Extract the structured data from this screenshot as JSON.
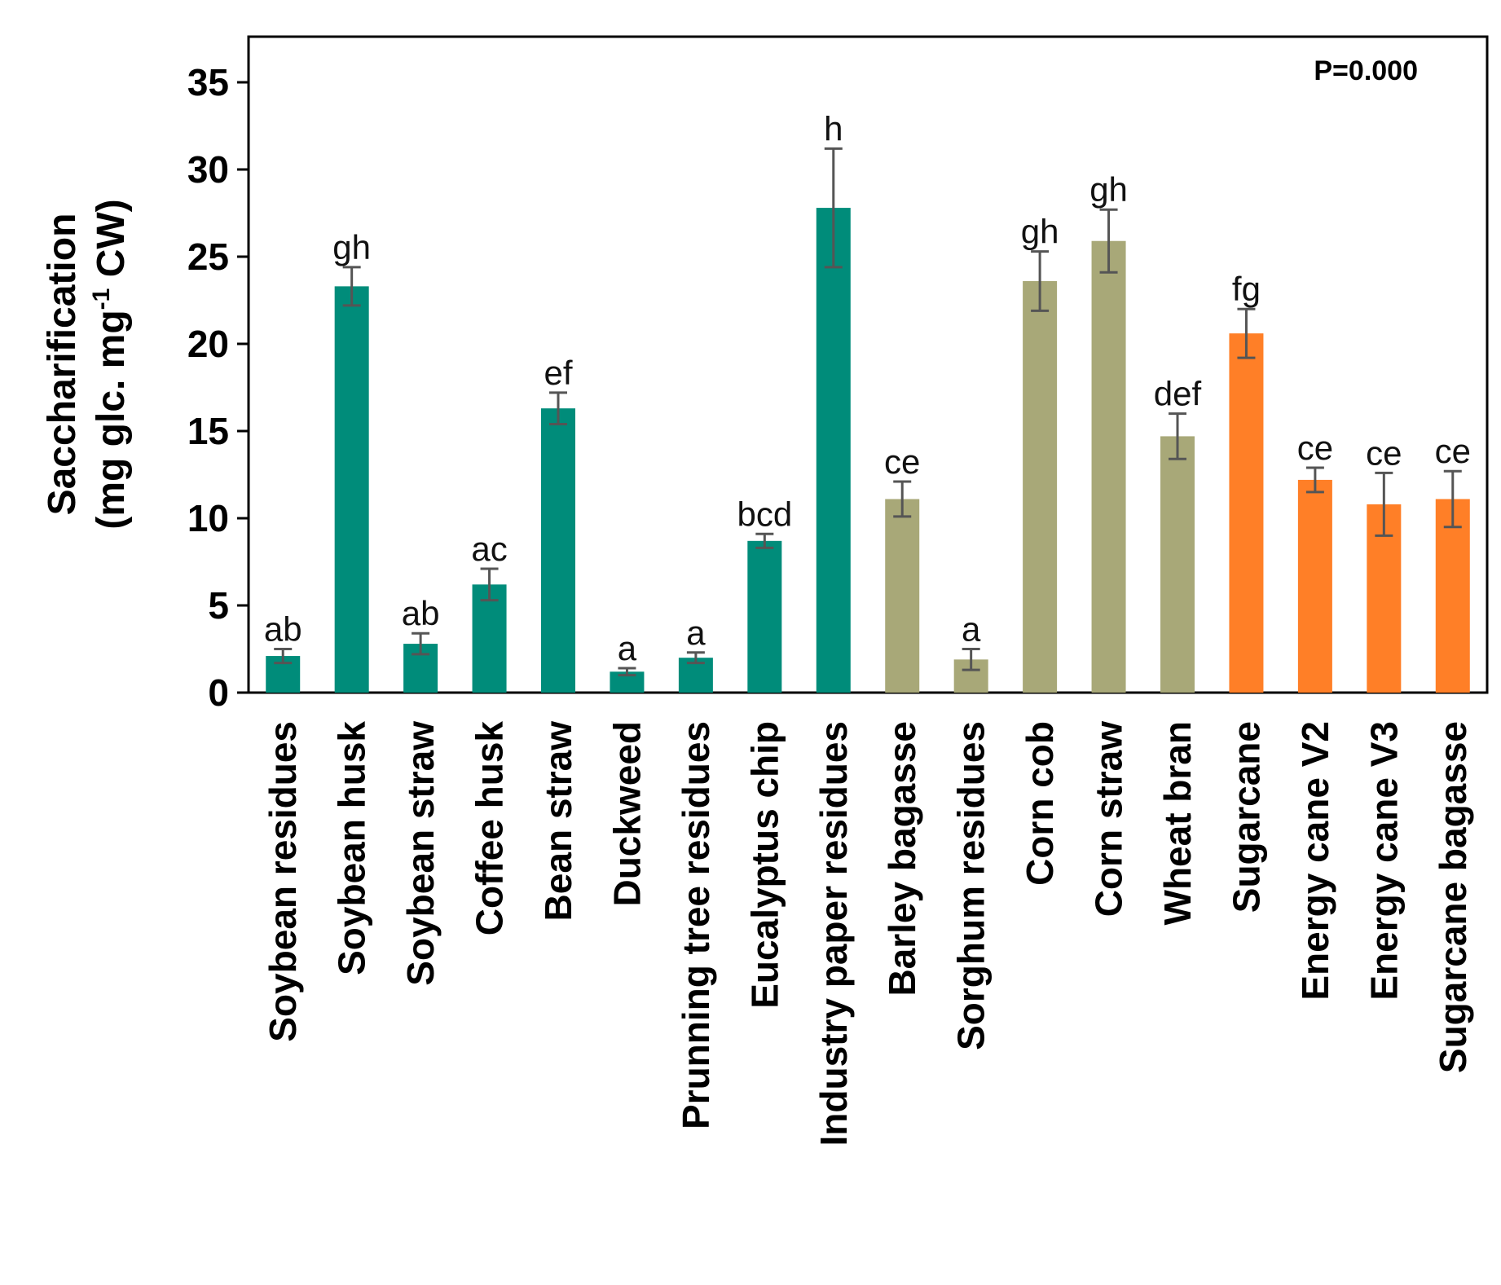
{
  "chart_data": {
    "type": "bar",
    "title": "",
    "xlabel": "",
    "ylabel_line1": "Saccharification",
    "ylabel_line2_pre": "(mg glc. mg",
    "ylabel_line2_sup": "-1",
    "ylabel_line2_post": " CW)",
    "ylim": [
      0,
      38
    ],
    "yticks": [
      0,
      5,
      10,
      15,
      20,
      25,
      30,
      35
    ],
    "annotation": "P=0.000",
    "colors": {
      "green": "#008C7A",
      "olive": "#A8A878",
      "orange": "#FF7F27",
      "errorbar": "#555555",
      "frame": "#000000"
    },
    "categories": [
      "Soybean residues",
      "Soybean husk",
      "Soybean straw",
      "Coffee husk",
      "Bean straw",
      "Duckweed",
      "Prunning tree residues",
      "Eucalyptus chip",
      "Industry paper residues",
      "Barley bagasse",
      "Sorghum residues",
      "Corn cob",
      "Corn straw",
      "Wheat bran",
      "Sugarcane",
      "Energy cane V2",
      "Energy cane V3",
      "Sugarcane bagasse"
    ],
    "values": [
      2.1,
      23.3,
      2.8,
      6.2,
      16.3,
      1.2,
      2.0,
      8.7,
      27.8,
      11.1,
      1.9,
      23.6,
      25.9,
      14.7,
      20.6,
      12.2,
      10.8,
      11.1
    ],
    "errors": [
      0.4,
      1.1,
      0.6,
      0.9,
      0.9,
      0.2,
      0.3,
      0.4,
      3.4,
      1.0,
      0.6,
      1.7,
      1.8,
      1.3,
      1.4,
      0.7,
      1.8,
      1.6
    ],
    "letters": [
      "ab",
      "gh",
      "ab",
      "ac",
      "ef",
      "a",
      "a",
      "bcd",
      "h",
      "ce",
      "a",
      "gh",
      "gh",
      "def",
      "fg",
      "ce",
      "ce",
      "ce"
    ],
    "groups": [
      "green",
      "green",
      "green",
      "green",
      "green",
      "green",
      "green",
      "green",
      "green",
      "olive",
      "olive",
      "olive",
      "olive",
      "olive",
      "orange",
      "orange",
      "orange",
      "orange"
    ]
  }
}
